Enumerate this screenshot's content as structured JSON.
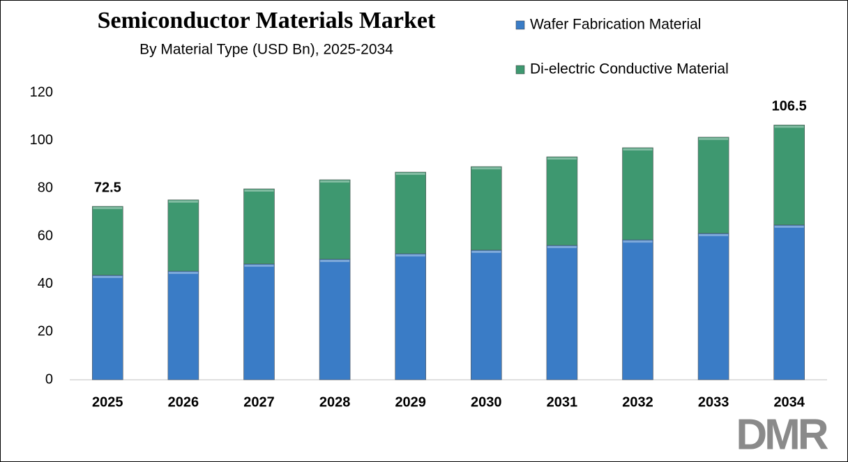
{
  "chart_data": {
    "type": "stacked_bar",
    "title": "Semiconductor Materials Market",
    "subtitle": "By Material Type (USD Bn), 2025-2034",
    "categories": [
      "2025",
      "2026",
      "2027",
      "2028",
      "2029",
      "2030",
      "2031",
      "2032",
      "2033",
      "2034"
    ],
    "series": [
      {
        "name": "Wafer Fabrication Material",
        "color": "#3a7cc6",
        "values": [
          43.7,
          45.4,
          48.4,
          50.4,
          52.7,
          54.2,
          56.2,
          58.5,
          61.2,
          64.7
        ]
      },
      {
        "name": "Di-electric Conductive Material",
        "color": "#3e9870",
        "values": [
          28.8,
          29.8,
          31.4,
          33.2,
          34.1,
          34.9,
          37.0,
          38.5,
          40.2,
          41.8
        ]
      }
    ],
    "total_labels": [
      72.5,
      null,
      null,
      null,
      null,
      null,
      null,
      null,
      null,
      106.5
    ],
    "ylim": [
      0,
      120
    ],
    "yticks": [
      0,
      20,
      40,
      60,
      80,
      100,
      120
    ],
    "grid": false,
    "legend": "top-right"
  },
  "logo": "DMR"
}
